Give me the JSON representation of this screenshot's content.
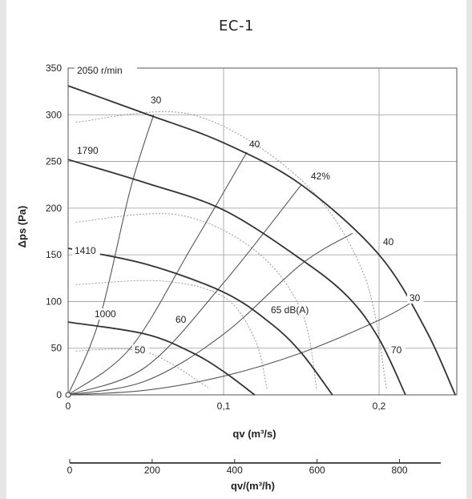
{
  "title": "EC-1",
  "chart_data": {
    "type": "line",
    "xlabel": "qv (m³/s)",
    "ylabel": "Δps (Pa)",
    "xlim": [
      0,
      0.25
    ],
    "ylim": [
      0,
      350
    ],
    "x_ticks": [
      "0",
      "0,1",
      "0,2"
    ],
    "x_tick_values": [
      0,
      0.1,
      0.2
    ],
    "y_ticks": [
      "0",
      "50",
      "100",
      "150",
      "200",
      "250",
      "300",
      "350"
    ],
    "y_tick_values": [
      0,
      50,
      100,
      150,
      200,
      250,
      300,
      350
    ],
    "grid": true,
    "secondary_axis": {
      "label": "qv/(m³/h)",
      "ticks": [
        "0",
        "200",
        "400",
        "600",
        "800"
      ],
      "tick_values": [
        0,
        200,
        400,
        600,
        800
      ],
      "lim": [
        0,
        900
      ]
    },
    "series": [
      {
        "name": "2050 r/min",
        "kind": "speed",
        "x": [
          0,
          0.05,
          0.1,
          0.15,
          0.2,
          0.23,
          0.249
        ],
        "y": [
          331,
          301,
          270,
          225,
          150,
          70,
          0
        ]
      },
      {
        "name": "1790",
        "kind": "speed",
        "x": [
          0,
          0.05,
          0.1,
          0.15,
          0.18,
          0.2,
          0.217
        ],
        "y": [
          252,
          227,
          198,
          145,
          105,
          60,
          0
        ]
      },
      {
        "name": "1410",
        "kind": "speed",
        "x": [
          0,
          0.05,
          0.1,
          0.13,
          0.15,
          0.17
        ],
        "y": [
          157,
          140,
          110,
          77,
          45,
          0
        ]
      },
      {
        "name": "1000",
        "kind": "speed",
        "x": [
          0,
          0.05,
          0.08,
          0.1,
          0.12
        ],
        "y": [
          78,
          65,
          45,
          25,
          0
        ]
      },
      {
        "name": "30",
        "kind": "efficiency",
        "x": [
          0,
          0.02,
          0.04,
          0.055
        ],
        "y": [
          0,
          80,
          220,
          300
        ]
      },
      {
        "name": "40",
        "kind": "efficiency",
        "x": [
          0,
          0.04,
          0.08,
          0.115
        ],
        "y": [
          0,
          50,
          160,
          260
        ]
      },
      {
        "name": "42%",
        "kind": "efficiency",
        "x": [
          0,
          0.05,
          0.1,
          0.15
        ],
        "y": [
          0,
          30,
          120,
          225
        ]
      },
      {
        "name": "40",
        "kind": "efficiency",
        "x": [
          0,
          0.05,
          0.1,
          0.15,
          0.183
        ],
        "y": [
          0,
          15,
          65,
          140,
          173
        ]
      },
      {
        "name": "30",
        "kind": "efficiency",
        "x": [
          0,
          0.05,
          0.1,
          0.15,
          0.2,
          0.22
        ],
        "y": [
          0,
          5,
          20,
          45,
          80,
          98
        ]
      },
      {
        "name": "50",
        "kind": "noise",
        "x": [
          0.005,
          0.05,
          0.09
        ],
        "y": [
          47,
          46,
          8
        ]
      },
      {
        "name": "60",
        "kind": "noise",
        "x": [
          0.005,
          0.06,
          0.1,
          0.12,
          0.128
        ],
        "y": [
          118,
          122,
          105,
          60,
          6
        ]
      },
      {
        "name": "65 dB(A)",
        "kind": "noise",
        "x": [
          0.005,
          0.07,
          0.12,
          0.15,
          0.16
        ],
        "y": [
          185,
          193,
          155,
          90,
          5
        ]
      },
      {
        "name": "70",
        "kind": "noise",
        "x": [
          0.005,
          0.08,
          0.15,
          0.19,
          0.205
        ],
        "y": [
          292,
          300,
          230,
          130,
          5
        ]
      }
    ],
    "annotations": [
      "2050 r/min",
      "1790",
      "1410",
      "1000",
      "30",
      "40",
      "42%",
      "40",
      "30",
      "50",
      "60",
      "65 dB(A)",
      "70"
    ]
  }
}
